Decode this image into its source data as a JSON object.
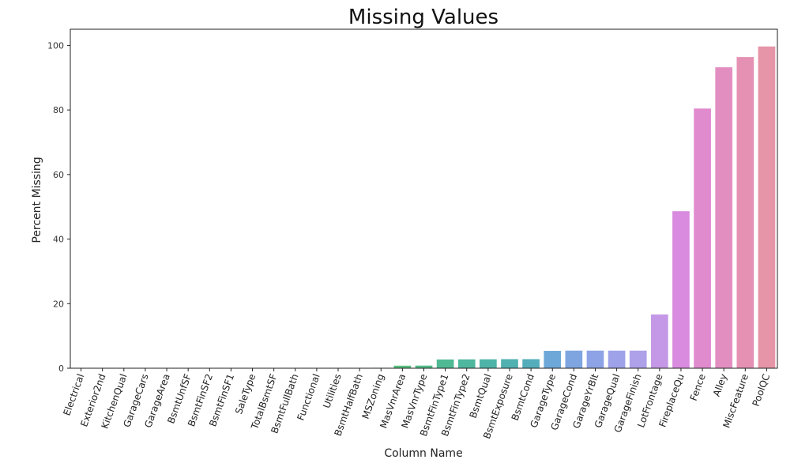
{
  "chart_data": {
    "type": "bar",
    "title": "Missing Values",
    "xlabel": "Column Name",
    "ylabel": "Percent Missing",
    "ylim": [
      0,
      105
    ],
    "yticks": [
      0,
      20,
      40,
      60,
      80,
      100
    ],
    "grid": false,
    "categories": [
      "Electrical",
      "Exterior2nd",
      "KitchenQual",
      "GarageCars",
      "GarageArea",
      "BsmtUnfSF",
      "BsmtFinSF2",
      "BsmtFinSF1",
      "SaleType",
      "TotalBsmtSF",
      "BsmtFullBath",
      "Functional",
      "Utilities",
      "BsmtHalfBath",
      "MSZoning",
      "MasVnrArea",
      "MasVnrType",
      "BsmtFinType1",
      "BsmtFinType2",
      "BsmtQual",
      "BsmtExposure",
      "BsmtCond",
      "GarageType",
      "GarageCond",
      "GarageYrBlt",
      "GarageQual",
      "GarageFinish",
      "LotFrontage",
      "FireplaceQu",
      "Fence",
      "Alley",
      "MiscFeature",
      "PoolQC"
    ],
    "values": [
      0.03,
      0.03,
      0.03,
      0.03,
      0.03,
      0.03,
      0.03,
      0.03,
      0.03,
      0.03,
      0.07,
      0.07,
      0.07,
      0.07,
      0.14,
      0.79,
      0.82,
      2.71,
      2.74,
      2.77,
      2.81,
      2.81,
      5.38,
      5.45,
      5.45,
      5.45,
      5.45,
      16.65,
      48.65,
      80.44,
      93.22,
      96.4,
      99.66
    ],
    "colors": [
      "#e68c6c",
      "#e39068",
      "#df9565",
      "#db9962",
      "#d69e5f",
      "#d0a35c",
      "#c9a85a",
      "#c1ad59",
      "#b8b259",
      "#adb65a",
      "#a0ba5d",
      "#92bd61",
      "#82c066",
      "#70c26c",
      "#62c274",
      "#58c07e",
      "#52bd89",
      "#4fba94",
      "#4eb79e",
      "#4fb4a8",
      "#51b1b1",
      "#55adbb",
      "#6ea8d8",
      "#7ea5e0",
      "#8ea3e5",
      "#9ea2e8",
      "#aea0e9",
      "#c498e6",
      "#d88bdf",
      "#e08bce",
      "#e38ec0",
      "#e591b3",
      "#e694a7"
    ]
  }
}
